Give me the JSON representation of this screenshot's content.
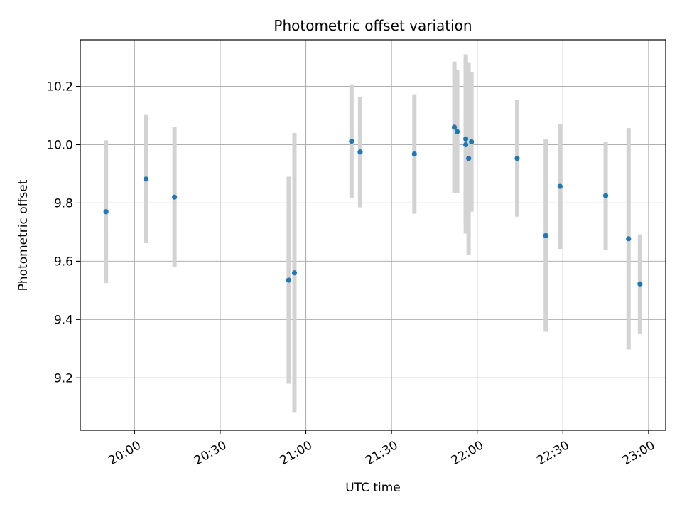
{
  "chart_data": {
    "type": "scatter",
    "title": "Photometric offset variation",
    "xlabel": "UTC time",
    "ylabel": "Photometric offset",
    "xlim": [
      "19:41",
      "23:06"
    ],
    "ylim": [
      9.02,
      10.36
    ],
    "grid": true,
    "x_ticks": [
      "20:00",
      "20:30",
      "21:00",
      "21:30",
      "22:00",
      "22:30",
      "23:00"
    ],
    "y_ticks": [
      9.2,
      9.4,
      9.6,
      9.8,
      10.0,
      10.2
    ],
    "point_color": "#1f77b4",
    "errorbar_color": "#d3d3d3",
    "points": [
      {
        "x": "19:50",
        "y": 9.77,
        "yerr": 0.245
      },
      {
        "x": "20:04",
        "y": 9.882,
        "yerr": 0.22
      },
      {
        "x": "20:14",
        "y": 9.82,
        "yerr": 0.24
      },
      {
        "x": "20:54",
        "y": 9.535,
        "yerr": 0.355
      },
      {
        "x": "20:56",
        "y": 9.56,
        "yerr": 0.48
      },
      {
        "x": "21:16",
        "y": 10.012,
        "yerr": 0.195
      },
      {
        "x": "21:19",
        "y": 9.975,
        "yerr": 0.19
      },
      {
        "x": "21:38",
        "y": 9.968,
        "yerr": 0.205
      },
      {
        "x": "21:52",
        "y": 10.06,
        "yerr": 0.225
      },
      {
        "x": "21:53",
        "y": 10.045,
        "yerr": 0.21
      },
      {
        "x": "21:56",
        "y": 10.0,
        "yerr": 0.305
      },
      {
        "x": "21:56",
        "y": 10.02,
        "yerr": 0.29
      },
      {
        "x": "21:57",
        "y": 9.953,
        "yerr": 0.33
      },
      {
        "x": "21:58",
        "y": 10.01,
        "yerr": 0.24
      },
      {
        "x": "22:14",
        "y": 9.953,
        "yerr": 0.2
      },
      {
        "x": "22:24",
        "y": 9.688,
        "yerr": 0.33
      },
      {
        "x": "22:29",
        "y": 9.857,
        "yerr": 0.215
      },
      {
        "x": "22:45",
        "y": 9.825,
        "yerr": 0.185
      },
      {
        "x": "22:53",
        "y": 9.677,
        "yerr": 0.38
      },
      {
        "x": "22:57",
        "y": 9.522,
        "yerr": 0.17
      }
    ]
  }
}
